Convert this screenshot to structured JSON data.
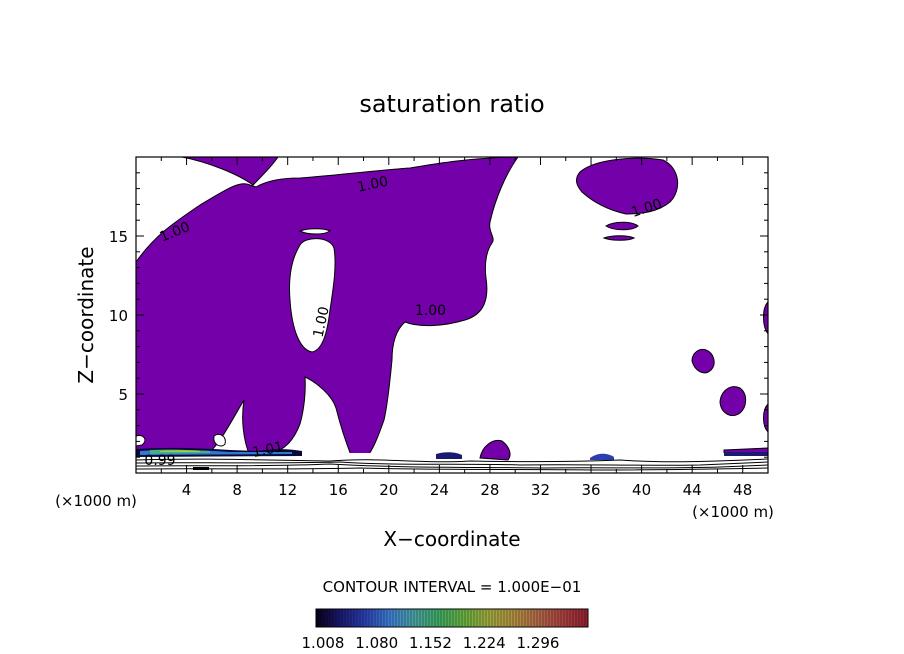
{
  "chart_data": {
    "type": "contour",
    "title": "saturation ratio",
    "xlabel": "X−coordinate",
    "ylabel": "Z−coordinate",
    "x_unit": "(×1000 m)",
    "x_unit_right": "(×1000 m)",
    "xlim": [
      0,
      50
    ],
    "ylim": [
      0,
      20
    ],
    "x_ticks": [
      4,
      8,
      12,
      16,
      20,
      24,
      28,
      32,
      36,
      40,
      44,
      48
    ],
    "y_ticks": [
      5,
      10,
      15
    ],
    "contour_labels": [
      {
        "text": "1.00",
        "x": 18.8,
        "z": 18.0
      },
      {
        "text": "1.00",
        "x": 3.2,
        "z": 15.0
      },
      {
        "text": "1.00",
        "x": 40.5,
        "z": 16.5
      },
      {
        "text": "1.00",
        "x": 15.0,
        "z": 9.5
      },
      {
        "text": "1.00",
        "x": 23.3,
        "z": 10.0
      },
      {
        "text": "1.01",
        "x": 10.5,
        "z": 1.2
      },
      {
        "text": "0.99",
        "x": 1.9,
        "z": 0.5
      }
    ],
    "contour_interval_text": "CONTOUR INTERVAL = 1.000E−01",
    "colorbar": {
      "tick_labels": [
        "1.008",
        "1.080",
        "1.152",
        "1.224",
        "1.296"
      ],
      "colors": [
        "#0a0018",
        "#1a1a70",
        "#2c3fb0",
        "#3f7fd0",
        "#4aa0a0",
        "#40a860",
        "#68b040",
        "#a0a840",
        "#b09040",
        "#b06848",
        "#a84040",
        "#902030"
      ]
    },
    "fill_color": "#7300a8",
    "line_color": "#000000",
    "grid": false
  }
}
